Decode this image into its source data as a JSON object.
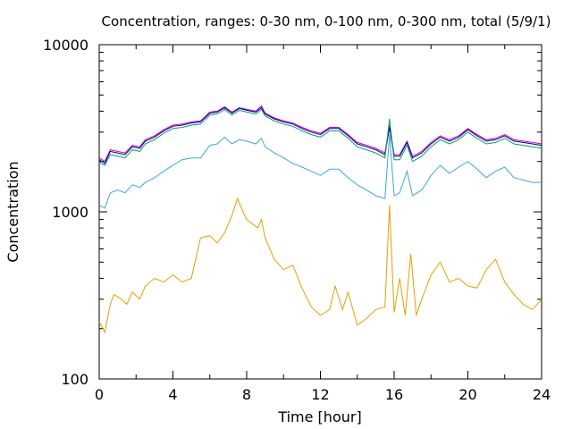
{
  "chart_data": {
    "type": "line",
    "title": "Concentration, ranges: 0-30 nm, 0-100 nm, 0-300 nm, total (5/9/1)",
    "xlabel": "Time [hour]",
    "ylabel": "Concentration",
    "xlim": [
      0,
      24
    ],
    "ylim": [
      100,
      10000
    ],
    "yscale": "log",
    "grid": false,
    "x_ticks": [
      "0",
      "4",
      "8",
      "12",
      "16",
      "20",
      "24"
    ],
    "y_ticks": [
      "100",
      "1000",
      "10000"
    ],
    "series": [
      {
        "color": "#cc00cc",
        "points": [
          [
            0,
            2100
          ],
          [
            0.3,
            2000
          ],
          [
            0.6,
            2350
          ],
          [
            1,
            2300
          ],
          [
            1.4,
            2250
          ],
          [
            1.8,
            2500
          ],
          [
            2.2,
            2450
          ],
          [
            2.5,
            2700
          ],
          [
            3,
            2850
          ],
          [
            3.5,
            3100
          ],
          [
            4,
            3300
          ],
          [
            4.5,
            3350
          ],
          [
            5,
            3450
          ],
          [
            5.5,
            3500
          ],
          [
            6,
            3950
          ],
          [
            6.4,
            4000
          ],
          [
            6.8,
            4250
          ],
          [
            7.2,
            3950
          ],
          [
            7.6,
            4200
          ],
          [
            8,
            4100
          ],
          [
            8.5,
            4000
          ],
          [
            8.8,
            4300
          ],
          [
            9,
            3900
          ],
          [
            9.5,
            3650
          ],
          [
            10,
            3500
          ],
          [
            10.5,
            3400
          ],
          [
            11,
            3200
          ],
          [
            11.5,
            3050
          ],
          [
            12,
            2950
          ],
          [
            12.5,
            3200
          ],
          [
            13,
            3200
          ],
          [
            13.5,
            2900
          ],
          [
            14,
            2600
          ],
          [
            14.5,
            2500
          ],
          [
            15,
            2400
          ],
          [
            15.5,
            2250
          ],
          [
            15.75,
            3300
          ],
          [
            16,
            2200
          ],
          [
            16.3,
            2200
          ],
          [
            16.7,
            2650
          ],
          [
            17,
            2150
          ],
          [
            17.5,
            2300
          ],
          [
            18,
            2600
          ],
          [
            18.5,
            2850
          ],
          [
            19,
            2700
          ],
          [
            19.5,
            2850
          ],
          [
            20,
            3150
          ],
          [
            20.5,
            2900
          ],
          [
            21,
            2700
          ],
          [
            21.5,
            2750
          ],
          [
            22,
            2900
          ],
          [
            22.5,
            2700
          ],
          [
            23,
            2650
          ],
          [
            23.5,
            2600
          ],
          [
            24,
            2550
          ]
        ]
      },
      {
        "color": "#000080",
        "points": [
          [
            0,
            2050
          ],
          [
            0.3,
            1950
          ],
          [
            0.6,
            2300
          ],
          [
            1,
            2250
          ],
          [
            1.4,
            2200
          ],
          [
            1.8,
            2450
          ],
          [
            2.2,
            2400
          ],
          [
            2.5,
            2650
          ],
          [
            3,
            2800
          ],
          [
            3.5,
            3050
          ],
          [
            4,
            3250
          ],
          [
            4.5,
            3300
          ],
          [
            5,
            3400
          ],
          [
            5.5,
            3450
          ],
          [
            6,
            3900
          ],
          [
            6.4,
            3950
          ],
          [
            6.8,
            4200
          ],
          [
            7.2,
            3900
          ],
          [
            7.6,
            4150
          ],
          [
            8,
            4050
          ],
          [
            8.5,
            3950
          ],
          [
            8.8,
            4200
          ],
          [
            9,
            3850
          ],
          [
            9.5,
            3600
          ],
          [
            10,
            3450
          ],
          [
            10.5,
            3350
          ],
          [
            11,
            3150
          ],
          [
            11.5,
            3000
          ],
          [
            12,
            2900
          ],
          [
            12.5,
            3150
          ],
          [
            13,
            3150
          ],
          [
            13.5,
            2850
          ],
          [
            14,
            2550
          ],
          [
            14.5,
            2450
          ],
          [
            15,
            2350
          ],
          [
            15.5,
            2200
          ],
          [
            15.75,
            3200
          ],
          [
            16,
            2150
          ],
          [
            16.3,
            2150
          ],
          [
            16.7,
            2600
          ],
          [
            17,
            2100
          ],
          [
            17.5,
            2250
          ],
          [
            18,
            2550
          ],
          [
            18.5,
            2800
          ],
          [
            19,
            2650
          ],
          [
            19.5,
            2800
          ],
          [
            20,
            3100
          ],
          [
            20.5,
            2850
          ],
          [
            21,
            2650
          ],
          [
            21.5,
            2700
          ],
          [
            22,
            2850
          ],
          [
            22.5,
            2650
          ],
          [
            23,
            2600
          ],
          [
            23.5,
            2550
          ],
          [
            24,
            2500
          ]
        ]
      },
      {
        "color": "#009e73",
        "points": [
          [
            0,
            1980
          ],
          [
            0.3,
            1900
          ],
          [
            0.6,
            2200
          ],
          [
            1,
            2150
          ],
          [
            1.4,
            2100
          ],
          [
            1.8,
            2350
          ],
          [
            2.2,
            2300
          ],
          [
            2.5,
            2550
          ],
          [
            3,
            2700
          ],
          [
            3.5,
            2950
          ],
          [
            4,
            3150
          ],
          [
            4.5,
            3200
          ],
          [
            5,
            3300
          ],
          [
            5.5,
            3350
          ],
          [
            6,
            3800
          ],
          [
            6.4,
            3850
          ],
          [
            6.8,
            4100
          ],
          [
            7.2,
            3800
          ],
          [
            7.6,
            4050
          ],
          [
            8,
            3950
          ],
          [
            8.5,
            3850
          ],
          [
            8.8,
            4100
          ],
          [
            9,
            3750
          ],
          [
            9.5,
            3500
          ],
          [
            10,
            3350
          ],
          [
            10.5,
            3250
          ],
          [
            11,
            3050
          ],
          [
            11.5,
            2900
          ],
          [
            12,
            2800
          ],
          [
            12.5,
            3050
          ],
          [
            13,
            3050
          ],
          [
            13.5,
            2750
          ],
          [
            14,
            2450
          ],
          [
            14.5,
            2350
          ],
          [
            15,
            2250
          ],
          [
            15.5,
            2100
          ],
          [
            15.75,
            3600
          ],
          [
            16,
            2050
          ],
          [
            16.3,
            2050
          ],
          [
            16.7,
            2500
          ],
          [
            17,
            2000
          ],
          [
            17.5,
            2150
          ],
          [
            18,
            2450
          ],
          [
            18.5,
            2700
          ],
          [
            19,
            2550
          ],
          [
            19.5,
            2700
          ],
          [
            20,
            3000
          ],
          [
            20.5,
            2750
          ],
          [
            21,
            2550
          ],
          [
            21.5,
            2600
          ],
          [
            22,
            2750
          ],
          [
            22.5,
            2550
          ],
          [
            23,
            2500
          ],
          [
            23.5,
            2450
          ],
          [
            24,
            2400
          ]
        ]
      },
      {
        "color": "#3fa7d6",
        "points": [
          [
            0,
            1100
          ],
          [
            0.3,
            1050
          ],
          [
            0.6,
            1300
          ],
          [
            1,
            1350
          ],
          [
            1.4,
            1300
          ],
          [
            1.8,
            1450
          ],
          [
            2.2,
            1400
          ],
          [
            2.5,
            1500
          ],
          [
            3,
            1600
          ],
          [
            3.5,
            1750
          ],
          [
            4,
            1900
          ],
          [
            4.5,
            2050
          ],
          [
            5,
            2100
          ],
          [
            5.5,
            2100
          ],
          [
            6,
            2500
          ],
          [
            6.4,
            2550
          ],
          [
            6.8,
            2800
          ],
          [
            7.2,
            2550
          ],
          [
            7.6,
            2700
          ],
          [
            8,
            2650
          ],
          [
            8.5,
            2550
          ],
          [
            8.8,
            2750
          ],
          [
            9,
            2450
          ],
          [
            9.5,
            2250
          ],
          [
            10,
            2100
          ],
          [
            10.5,
            1950
          ],
          [
            11,
            1850
          ],
          [
            11.5,
            1750
          ],
          [
            12,
            1650
          ],
          [
            12.5,
            1800
          ],
          [
            13,
            1800
          ],
          [
            13.5,
            1600
          ],
          [
            14,
            1450
          ],
          [
            14.5,
            1350
          ],
          [
            15,
            1250
          ],
          [
            15.5,
            1200
          ],
          [
            15.75,
            2900
          ],
          [
            16,
            1250
          ],
          [
            16.3,
            1300
          ],
          [
            16.7,
            1750
          ],
          [
            17,
            1250
          ],
          [
            17.5,
            1350
          ],
          [
            18,
            1650
          ],
          [
            18.5,
            1900
          ],
          [
            19,
            1700
          ],
          [
            19.5,
            1850
          ],
          [
            20,
            2000
          ],
          [
            20.5,
            1800
          ],
          [
            21,
            1600
          ],
          [
            21.5,
            1750
          ],
          [
            22,
            1850
          ],
          [
            22.5,
            1600
          ],
          [
            23,
            1550
          ],
          [
            23.5,
            1500
          ],
          [
            24,
            1500
          ]
        ]
      },
      {
        "color": "#e69f00",
        "points": [
          [
            0,
            220
          ],
          [
            0.3,
            190
          ],
          [
            0.6,
            280
          ],
          [
            0.8,
            320
          ],
          [
            1.2,
            300
          ],
          [
            1.5,
            280
          ],
          [
            1.8,
            330
          ],
          [
            2.2,
            300
          ],
          [
            2.5,
            360
          ],
          [
            3,
            400
          ],
          [
            3.5,
            380
          ],
          [
            4,
            420
          ],
          [
            4.5,
            380
          ],
          [
            5,
            400
          ],
          [
            5.5,
            700
          ],
          [
            6,
            720
          ],
          [
            6.4,
            650
          ],
          [
            6.8,
            750
          ],
          [
            7.2,
            950
          ],
          [
            7.5,
            1200
          ],
          [
            7.8,
            1000
          ],
          [
            8,
            900
          ],
          [
            8.3,
            850
          ],
          [
            8.6,
            800
          ],
          [
            8.8,
            900
          ],
          [
            9,
            700
          ],
          [
            9.5,
            520
          ],
          [
            10,
            450
          ],
          [
            10.5,
            480
          ],
          [
            11,
            350
          ],
          [
            11.5,
            270
          ],
          [
            12,
            240
          ],
          [
            12.5,
            260
          ],
          [
            12.8,
            360
          ],
          [
            13.2,
            260
          ],
          [
            13.5,
            330
          ],
          [
            14,
            210
          ],
          [
            14.5,
            230
          ],
          [
            15,
            260
          ],
          [
            15.5,
            270
          ],
          [
            15.75,
            1100
          ],
          [
            16,
            250
          ],
          [
            16.3,
            400
          ],
          [
            16.6,
            240
          ],
          [
            16.9,
            560
          ],
          [
            17.2,
            240
          ],
          [
            17.5,
            300
          ],
          [
            18,
            420
          ],
          [
            18.5,
            500
          ],
          [
            19,
            380
          ],
          [
            19.5,
            400
          ],
          [
            20,
            360
          ],
          [
            20.5,
            350
          ],
          [
            21,
            450
          ],
          [
            21.5,
            520
          ],
          [
            22,
            380
          ],
          [
            22.5,
            320
          ],
          [
            23,
            280
          ],
          [
            23.5,
            260
          ],
          [
            24,
            300
          ]
        ]
      }
    ]
  }
}
